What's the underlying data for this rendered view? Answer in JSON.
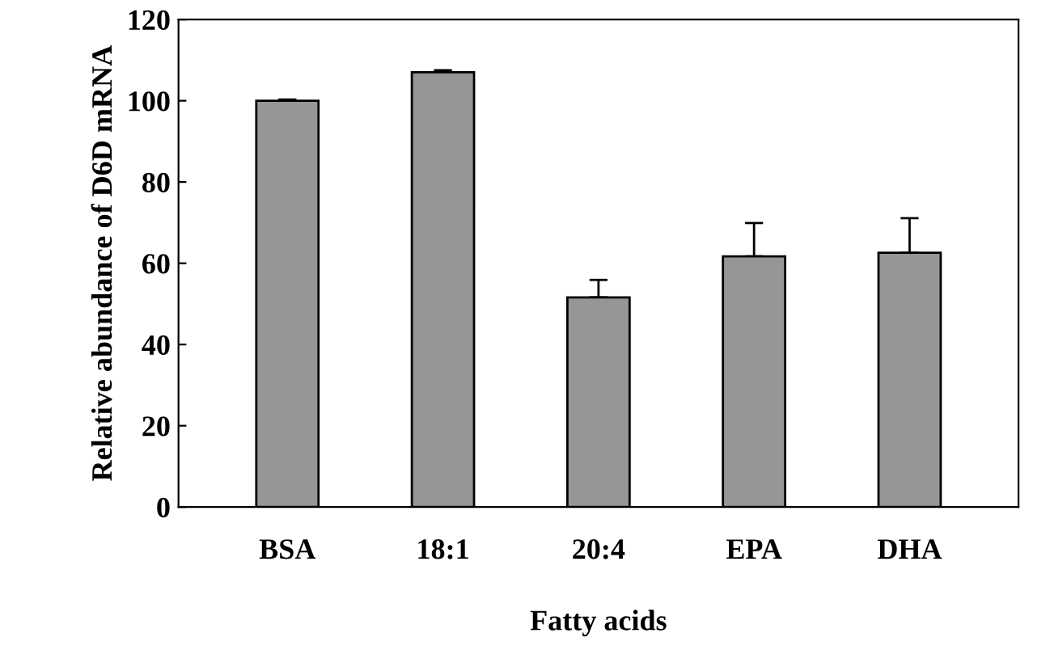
{
  "chart_data": {
    "type": "bar",
    "xlabel": "Fatty acids",
    "ylabel": "Relative abundance of D6D mRNA",
    "categories": [
      "BSA",
      "18:1",
      "20:4",
      "EPA",
      "DHA"
    ],
    "values": [
      100,
      107,
      51.6,
      61.7,
      62.6
    ],
    "errors": [
      [
        100,
        100.3
      ],
      [
        107,
        107.5
      ],
      [
        51.6,
        55.9
      ],
      [
        61.7,
        69.9
      ],
      [
        62.6,
        71.1
      ]
    ],
    "color": "#969696",
    "ylim": [
      0,
      120
    ],
    "yticks": [
      0,
      20,
      40,
      60,
      80,
      100,
      120
    ],
    "grid": false
  }
}
